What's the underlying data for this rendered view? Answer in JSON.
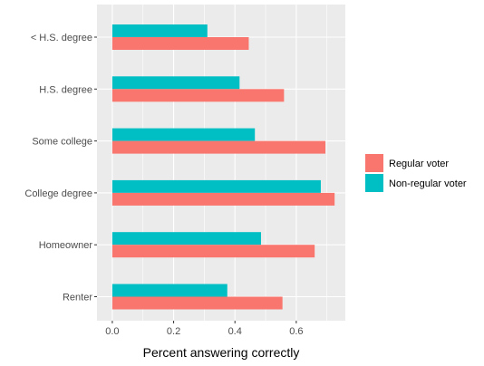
{
  "chart_data": {
    "type": "bar",
    "orientation": "horizontal",
    "categories": [
      "< H.S. degree",
      "H.S. degree",
      "Some college",
      "College degree",
      "Homeowner",
      "Renter"
    ],
    "series": [
      {
        "name": "Non-regular voter",
        "values": [
          0.31,
          0.415,
          0.465,
          0.68,
          0.485,
          0.375
        ],
        "color": "#00BFC4"
      },
      {
        "name": "Regular voter",
        "values": [
          0.445,
          0.56,
          0.695,
          0.725,
          0.66,
          0.555
        ],
        "color": "#F8766D"
      }
    ],
    "xlabel": "Percent answering correctly",
    "ylabel": "",
    "xlim": [
      -0.05,
      0.76
    ],
    "xticks": [
      0.0,
      0.2,
      0.4,
      0.6
    ],
    "xtick_labels": [
      "0.0",
      "0.2",
      "0.4",
      "0.6"
    ],
    "grid": true,
    "panel_background": "#EBEBEB",
    "legend": {
      "position": "right",
      "entries": [
        "Regular voter",
        "Non-regular voter"
      ]
    }
  }
}
